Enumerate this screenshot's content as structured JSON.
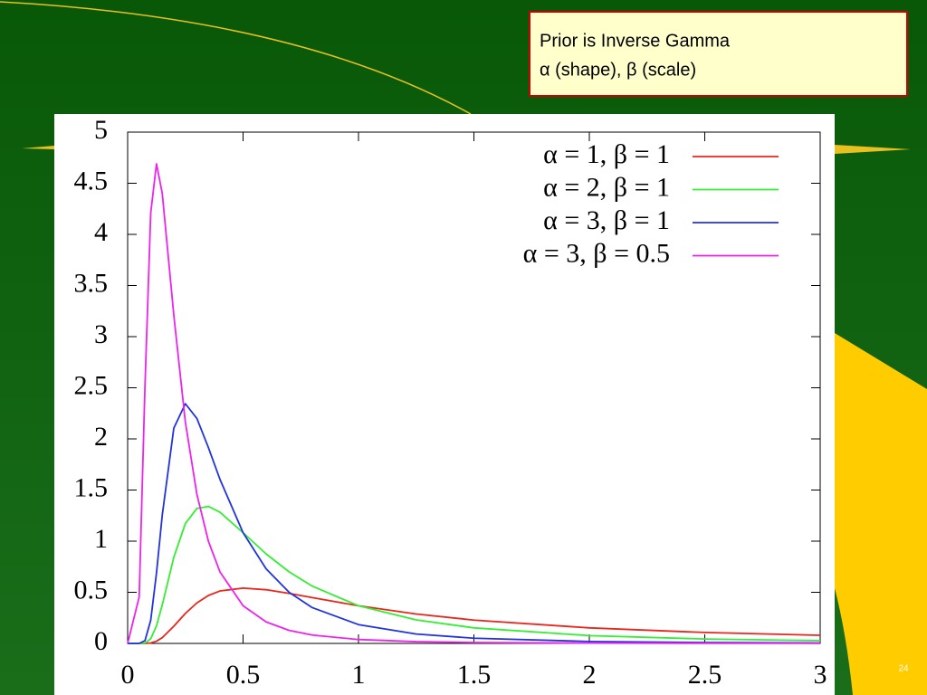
{
  "chart_data": {
    "type": "line",
    "x": [
      0,
      0.05,
      0.075,
      0.1,
      0.125,
      0.15,
      0.2,
      0.25,
      0.3,
      0.35,
      0.4,
      0.5,
      0.6,
      0.7,
      0.8,
      1,
      1.25,
      1.5,
      2,
      2.5,
      3
    ],
    "series": [
      {
        "name": "α = 1, β = 1",
        "color": "#e8261c",
        "values": [
          0,
          0,
          0.0003,
          0.0045,
          0.0215,
          0.0565,
          0.168,
          0.293,
          0.396,
          0.469,
          0.513,
          0.541,
          0.525,
          0.489,
          0.448,
          0.368,
          0.288,
          0.228,
          0.152,
          0.107,
          0.0796
        ]
      },
      {
        "name": "α = 2, β = 1",
        "color": "#33ee33",
        "values": [
          0,
          0,
          0.004,
          0.045,
          0.172,
          0.377,
          0.842,
          1.172,
          1.32,
          1.34,
          1.283,
          1.083,
          0.875,
          0.699,
          0.56,
          0.368,
          0.23,
          0.152,
          0.076,
          0.043,
          0.0265
        ]
      },
      {
        "name": "α = 3, β = 1",
        "color": "#2233dd",
        "values": [
          0,
          0,
          0.027,
          0.227,
          0.689,
          1.256,
          2.105,
          2.344,
          2.2,
          1.914,
          1.604,
          1.083,
          0.729,
          0.499,
          0.35,
          0.184,
          0.092,
          0.051,
          0.019,
          0.0086,
          0.0044
        ]
      },
      {
        "name": "α = 3, β = 0.5",
        "color": "#ee22ee",
        "values": [
          0,
          0.454,
          2.51,
          4.21,
          4.69,
          4.4,
          3.21,
          2.165,
          1.458,
          0.998,
          0.699,
          0.368,
          0.21,
          0.127,
          0.082,
          0.038,
          0.017,
          0.0089,
          0.003,
          0.0013,
          0.0007
        ]
      }
    ],
    "xlim": [
      0,
      3
    ],
    "xticks": [
      0,
      0.5,
      1,
      1.5,
      2,
      2.5,
      3
    ],
    "ylim": [
      0,
      5
    ],
    "yticks": [
      0,
      0.5,
      1,
      1.5,
      2,
      2.5,
      3,
      3.5,
      4,
      4.5,
      5
    ],
    "grid": false,
    "legend": "top-right"
  },
  "slide": {
    "note_lines": [
      "Prior is Inverse Gamma",
      "α (shape), β (scale)"
    ],
    "page_number": "24"
  }
}
